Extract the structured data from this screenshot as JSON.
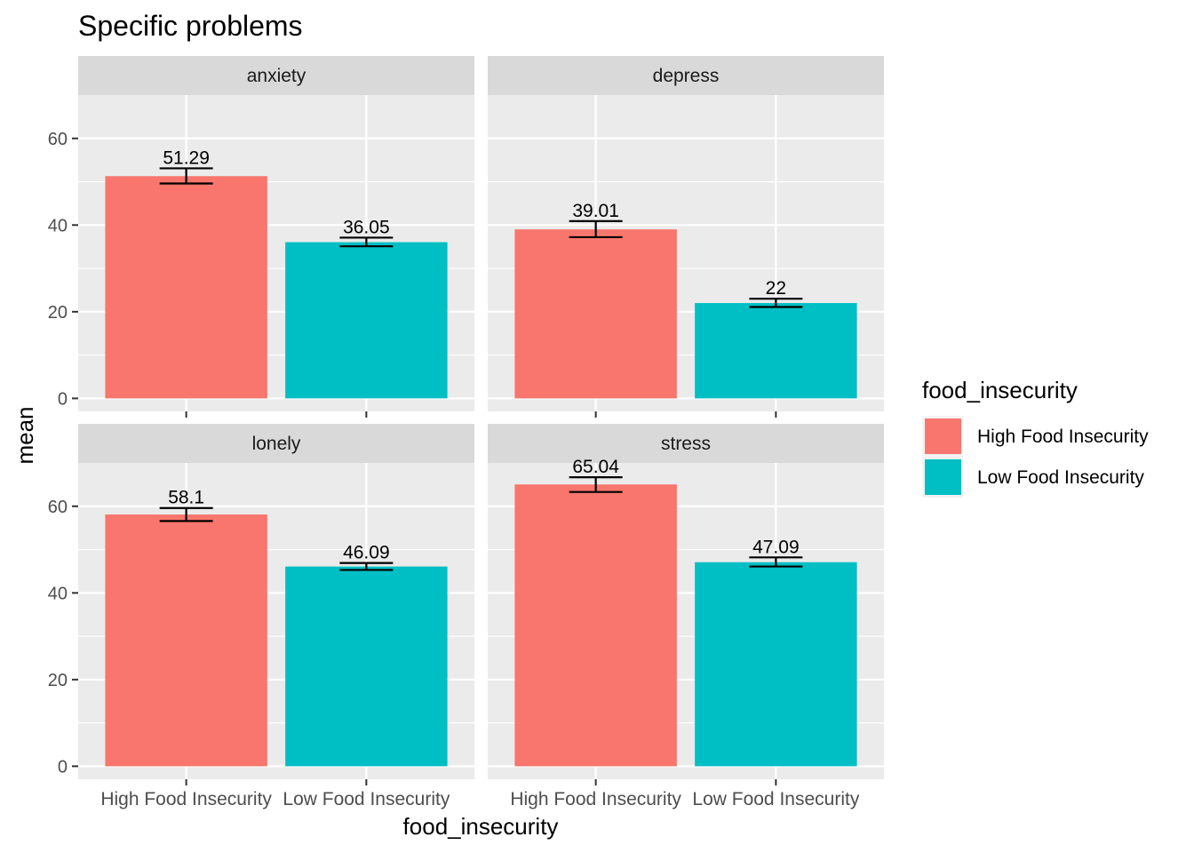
{
  "chart_data": {
    "type": "bar",
    "title": "Specific problems",
    "xlabel": "food_insecurity",
    "ylabel": "mean",
    "ylim": [
      -3,
      70
    ],
    "yticks": [
      0,
      20,
      40,
      60
    ],
    "grid": true,
    "legend_placement": "right",
    "legend_title": "food_insecurity",
    "categories": [
      "High Food Insecurity",
      "Low Food Insecurity"
    ],
    "series": [
      {
        "name": "High Food Insecurity",
        "color": "#F8766D"
      },
      {
        "name": "Low Food Insecurity",
        "color": "#00BFC4"
      }
    ],
    "panels": [
      {
        "name": "anxiety",
        "values": [
          51.29,
          36.05
        ],
        "error": [
          [
            49.6,
            53.1
          ],
          [
            35.1,
            37.1
          ]
        ],
        "labels": [
          "51.29",
          "36.05"
        ]
      },
      {
        "name": "depress",
        "values": [
          39.01,
          22.0
        ],
        "error": [
          [
            37.2,
            40.9
          ],
          [
            21.1,
            23.0
          ]
        ],
        "labels": [
          "39.01",
          "22"
        ]
      },
      {
        "name": "lonely",
        "values": [
          58.1,
          46.09
        ],
        "error": [
          [
            56.6,
            59.6
          ],
          [
            45.3,
            46.9
          ]
        ],
        "labels": [
          "58.1",
          "46.09"
        ]
      },
      {
        "name": "stress",
        "values": [
          65.04,
          47.09
        ],
        "error": [
          [
            63.3,
            66.7
          ],
          [
            46.1,
            48.2
          ]
        ],
        "labels": [
          "65.04",
          "47.09"
        ]
      }
    ]
  }
}
